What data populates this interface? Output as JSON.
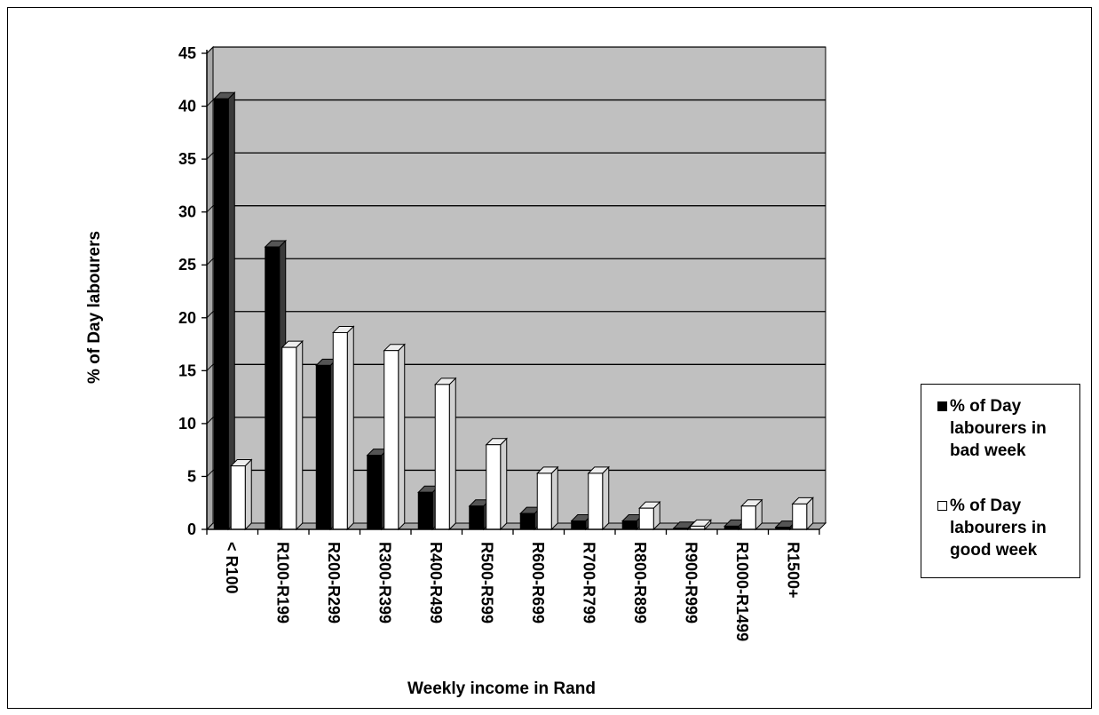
{
  "chart_data": {
    "type": "bar",
    "categories": [
      "< R100",
      "R100-R199",
      "R200-R299",
      "R300-R399",
      "R400-R499",
      "R500-R599",
      "R600-R699",
      "R700-R799",
      "R800-R899",
      "R900-R999",
      "R1000-R1499",
      "R1500+"
    ],
    "series": [
      {
        "name": "% of Day labourers in bad week",
        "color": "#000000",
        "values": [
          40.7,
          26.7,
          15.5,
          7.0,
          3.5,
          2.2,
          1.5,
          0.8,
          0.8,
          0.1,
          0.3,
          0.2
        ]
      },
      {
        "name": "% of Day labourers in good week",
        "color": "#ffffff",
        "values": [
          6.0,
          17.2,
          18.6,
          16.9,
          13.7,
          8.0,
          5.3,
          5.3,
          2.0,
          0.3,
          2.2,
          2.4
        ]
      }
    ],
    "title": "",
    "xlabel": "Weekly income in Rand",
    "ylabel": "% of Day labourers",
    "ylim": [
      0,
      45
    ],
    "yticks": [
      0,
      5,
      10,
      15,
      20,
      25,
      30,
      35,
      40,
      45
    ],
    "grid": true,
    "legend_position": "right",
    "plot_background": "#c0c0c0",
    "style": "3d-clustered-column"
  },
  "legend": {
    "bad_label": "% of Day labourers in bad week",
    "good_label": "% of Day labourers in good week"
  }
}
